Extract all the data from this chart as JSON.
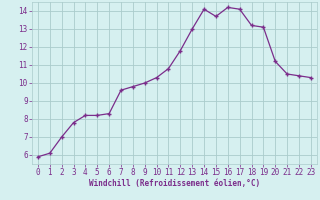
{
  "x": [
    0,
    1,
    2,
    3,
    4,
    5,
    6,
    7,
    8,
    9,
    10,
    11,
    12,
    13,
    14,
    15,
    16,
    17,
    18,
    19,
    20,
    21,
    22,
    23
  ],
  "y": [
    5.9,
    6.1,
    7.0,
    7.8,
    8.2,
    8.2,
    8.3,
    9.6,
    9.8,
    10.0,
    10.3,
    10.8,
    11.8,
    13.0,
    14.1,
    13.7,
    14.2,
    14.1,
    13.2,
    13.1,
    11.2,
    10.5,
    10.4,
    10.3
  ],
  "line_color": "#7b2d8b",
  "marker": "+",
  "marker_size": 3,
  "bg_color": "#d6f0f0",
  "grid_color": "#aacccc",
  "xlabel": "Windchill (Refroidissement éolien,°C)",
  "xlabel_color": "#7b2d8b",
  "tick_color": "#7b2d8b",
  "ylim": [
    5.5,
    14.5
  ],
  "yticks": [
    6,
    7,
    8,
    9,
    10,
    11,
    12,
    13,
    14
  ],
  "xticks": [
    0,
    1,
    2,
    3,
    4,
    5,
    6,
    7,
    8,
    9,
    10,
    11,
    12,
    13,
    14,
    15,
    16,
    17,
    18,
    19,
    20,
    21,
    22,
    23
  ],
  "xlim": [
    -0.5,
    23.5
  ]
}
